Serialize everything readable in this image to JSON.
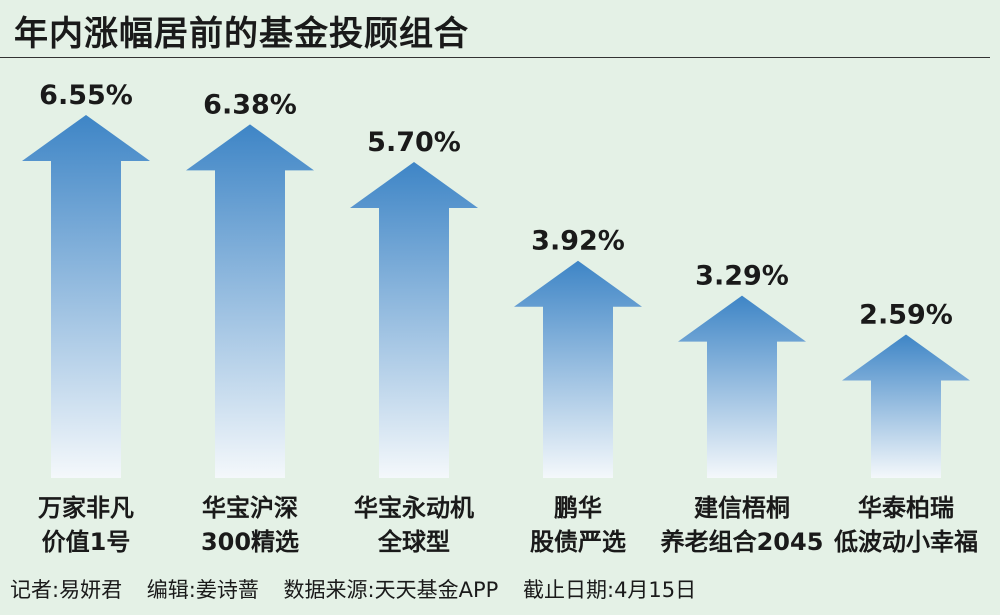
{
  "title": "年内涨幅居前的基金投顾组合",
  "colors": {
    "background": "#e4f1e6",
    "arrow_top": "#3e85c6",
    "arrow_bottom": "#f4f8fb"
  },
  "chart_data": {
    "type": "bar",
    "bar_style": "upward-arrow",
    "categories": [
      [
        "万家非凡",
        "价值1号"
      ],
      [
        "华宝沪深",
        "300精选"
      ],
      [
        "华宝永动机",
        "全球型"
      ],
      [
        "鹏华",
        "股债严选"
      ],
      [
        "建信梧桐",
        "养老组合2045"
      ],
      [
        "华泰柏瑞",
        "低波动小幸福"
      ]
    ],
    "values": [
      6.55,
      6.38,
      5.7,
      3.92,
      3.29,
      2.59
    ],
    "value_labels": [
      "6.55%",
      "6.38%",
      "5.70%",
      "3.92%",
      "3.29%",
      "2.59%"
    ],
    "unit": "%",
    "ylim": [
      0,
      7
    ],
    "grid": false,
    "legend": "none"
  },
  "footer": {
    "reporter": "记者:易妍君",
    "editor": "编辑:姜诗蔷",
    "source": "数据来源:天天基金APP",
    "cutoff": "截止日期:4月15日"
  }
}
